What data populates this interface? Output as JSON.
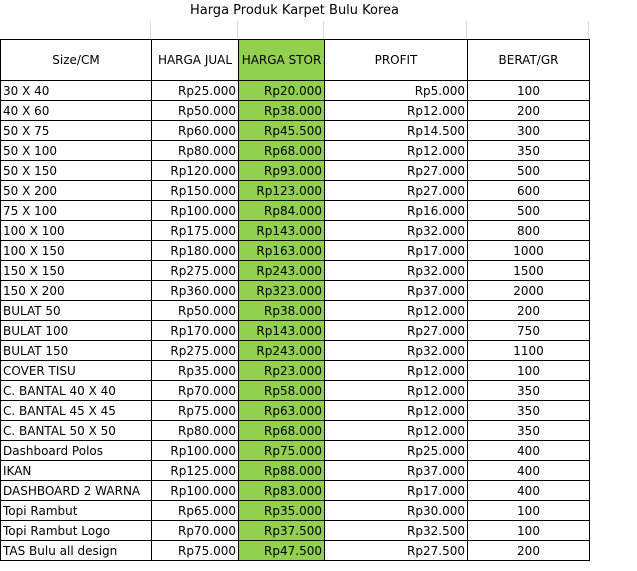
{
  "title": "Harga Produk Karpet Bulu Korea",
  "colors": {
    "stor_fill": "#92d050",
    "border": "#000000",
    "gridline": "#d9d9d9"
  },
  "headers": [
    "Size/CM",
    "HARGA JUAL",
    "HARGA STOR",
    "PROFIT",
    "BERAT/GR"
  ],
  "rows": [
    {
      "size": "30 X 40",
      "jual": "Rp25.000",
      "stor": "Rp20.000",
      "profit": "Rp5.000",
      "berat": "100"
    },
    {
      "size": "40 X 60",
      "jual": "Rp50.000",
      "stor": "Rp38.000",
      "profit": "Rp12.000",
      "berat": "200"
    },
    {
      "size": "50 X 75",
      "jual": "Rp60.000",
      "stor": "Rp45.500",
      "profit": "Rp14.500",
      "berat": "300"
    },
    {
      "size": "50 X 100",
      "jual": "Rp80.000",
      "stor": "Rp68.000",
      "profit": "Rp12.000",
      "berat": "350"
    },
    {
      "size": "50 X 150",
      "jual": "Rp120.000",
      "stor": "Rp93.000",
      "profit": "Rp27.000",
      "berat": "500"
    },
    {
      "size": "50 X 200",
      "jual": "Rp150.000",
      "stor": "Rp123.000",
      "profit": "Rp27.000",
      "berat": "600"
    },
    {
      "size": "75 X 100",
      "jual": "Rp100.000",
      "stor": "Rp84.000",
      "profit": "Rp16.000",
      "berat": "500"
    },
    {
      "size": "100 X 100",
      "jual": "Rp175.000",
      "stor": "Rp143.000",
      "profit": "Rp32.000",
      "berat": "800"
    },
    {
      "size": "100 X 150",
      "jual": "Rp180.000",
      "stor": "Rp163.000",
      "profit": "Rp17.000",
      "berat": "1000"
    },
    {
      "size": "150 X 150",
      "jual": "Rp275.000",
      "stor": "Rp243.000",
      "profit": "Rp32.000",
      "berat": "1500"
    },
    {
      "size": "150 X 200",
      "jual": "Rp360.000",
      "stor": "Rp323.000",
      "profit": "Rp37.000",
      "berat": "2000"
    },
    {
      "size": "BULAT 50",
      "jual": "Rp50.000",
      "stor": "Rp38.000",
      "profit": "Rp12.000",
      "berat": "200"
    },
    {
      "size": "BULAT 100",
      "jual": "Rp170.000",
      "stor": "Rp143.000",
      "profit": "Rp27.000",
      "berat": "750"
    },
    {
      "size": "BULAT 150",
      "jual": "Rp275.000",
      "stor": "Rp243.000",
      "profit": "Rp32.000",
      "berat": "1100"
    },
    {
      "size": "COVER TISU",
      "jual": "Rp35.000",
      "stor": "Rp23.000",
      "profit": "Rp12.000",
      "berat": "100"
    },
    {
      "size": "C. BANTAL 40 X 40",
      "jual": "Rp70.000",
      "stor": "Rp58.000",
      "profit": "Rp12.000",
      "berat": "350"
    },
    {
      "size": "C. BANTAL 45 X 45",
      "jual": "Rp75.000",
      "stor": "Rp63.000",
      "profit": "Rp12.000",
      "berat": "350"
    },
    {
      "size": "C. BANTAL 50 X 50",
      "jual": "Rp80.000",
      "stor": "Rp68.000",
      "profit": "Rp12.000",
      "berat": "350"
    },
    {
      "size": "Dashboard Polos",
      "jual": "Rp100.000",
      "stor": "Rp75.000",
      "profit": "Rp25.000",
      "berat": "400"
    },
    {
      "size": "IKAN",
      "jual": "Rp125.000",
      "stor": "Rp88.000",
      "profit": "Rp37.000",
      "berat": "400"
    },
    {
      "size": "DASHBOARD 2 WARNA",
      "jual": "Rp100.000",
      "stor": "Rp83.000",
      "profit": "Rp17.000",
      "berat": "400"
    },
    {
      "size": "Topi Rambut",
      "jual": "Rp65.000",
      "stor": "Rp35.000",
      "profit": "Rp30.000",
      "berat": "100"
    },
    {
      "size": "Topi Rambut Logo",
      "jual": "Rp70.000",
      "stor": "Rp37.500",
      "profit": "Rp32.500",
      "berat": "100"
    },
    {
      "size": "TAS Bulu all design",
      "jual": "Rp75.000",
      "stor": "Rp47.500",
      "profit": "Rp27.500",
      "berat": "200"
    }
  ]
}
